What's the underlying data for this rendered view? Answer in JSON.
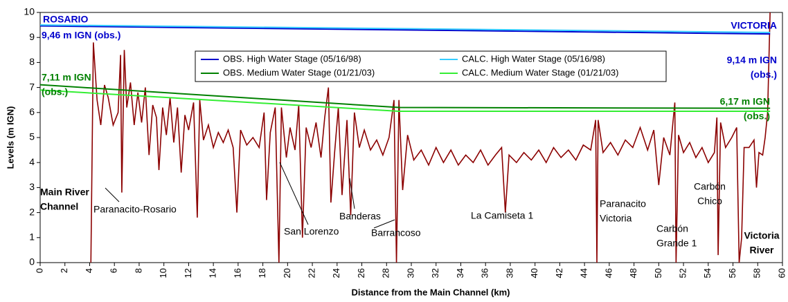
{
  "chart_data": {
    "type": "line",
    "xlabel": "Distance from the Main Channel (km)",
    "ylabel": "Levels (m IGN)",
    "xlim": [
      0,
      60
    ],
    "ylim": [
      0,
      10
    ],
    "xticks": [
      0,
      2,
      4,
      6,
      8,
      10,
      12,
      14,
      16,
      18,
      20,
      22,
      24,
      26,
      28,
      30,
      32,
      34,
      36,
      38,
      40,
      42,
      44,
      46,
      48,
      50,
      52,
      54,
      56,
      58,
      60
    ],
    "yticks": [
      0,
      1,
      2,
      3,
      4,
      5,
      6,
      7,
      8,
      9,
      10
    ],
    "legend": "top-center",
    "series": [
      {
        "name": "OBS. High Water Stage (05/16/98)",
        "color": "#0000cc",
        "x": [
          0,
          59
        ],
        "values": [
          9.46,
          9.14
        ]
      },
      {
        "name": "CALC. High Water Stage (05/16/98)",
        "color": "#33ccff",
        "x": [
          0,
          59
        ],
        "values": [
          9.5,
          9.2
        ]
      },
      {
        "name": "OBS. Medium Water Stage (01/21/03)",
        "color": "#008000",
        "x": [
          0,
          29,
          59
        ],
        "values": [
          7.11,
          6.2,
          6.17
        ]
      },
      {
        "name": "CALC. Medium Water Stage (01/21/03)",
        "color": "#33ee33",
        "x": [
          0,
          29,
          59
        ],
        "values": [
          6.9,
          6.05,
          6.05
        ]
      },
      {
        "color": "#8b0000",
        "x": [
          4.1,
          4.3,
          4.6,
          4.9,
          5.2,
          5.5,
          5.9,
          6.3,
          6.5,
          6.6,
          6.8,
          7.0,
          7.3,
          7.6,
          7.9,
          8.2,
          8.5,
          8.8,
          9.1,
          9.4,
          9.6,
          9.9,
          10.2,
          10.5,
          10.8,
          11.1,
          11.4,
          11.7,
          12.0,
          12.4,
          12.7,
          12.9,
          13.2,
          13.6,
          14.0,
          14.4,
          14.8,
          15.2,
          15.6,
          15.9,
          16.2,
          16.7,
          17.2,
          17.7,
          18.1,
          18.3,
          18.6,
          19.0,
          19.3,
          19.5,
          19.9,
          20.2,
          20.6,
          20.9,
          21.2,
          21.5,
          21.9,
          22.3,
          22.7,
          23.0,
          23.3,
          23.5,
          23.8,
          24.1,
          24.4,
          24.8,
          25.1,
          25.4,
          25.8,
          26.2,
          26.7,
          27.2,
          27.7,
          28.2,
          28.6,
          28.8,
          29.0,
          29.3,
          29.7,
          30.2,
          30.8,
          31.4,
          32.0,
          32.6,
          33.2,
          33.8,
          34.4,
          35.0,
          35.6,
          36.2,
          36.8,
          37.3,
          37.6,
          37.9,
          38.5,
          39.1,
          39.7,
          40.3,
          40.9,
          41.5,
          42.1,
          42.7,
          43.3,
          43.9,
          44.5,
          44.9,
          45.0,
          45.1,
          45.5,
          46.1,
          46.7,
          47.3,
          47.9,
          48.5,
          49.1,
          49.6,
          50.0,
          50.4,
          50.9,
          51.3,
          51.4,
          51.6,
          52.0,
          52.5,
          53.0,
          53.5,
          54.0,
          54.5,
          54.7,
          54.8,
          55.0,
          55.4,
          55.9,
          56.3,
          56.5,
          56.7,
          56.9,
          57.3,
          57.7,
          57.9,
          58.1,
          58.4,
          58.6,
          58.8,
          59.0
        ],
        "values": [
          0,
          8.8,
          6.5,
          5.5,
          7.1,
          6.6,
          5.5,
          6.0,
          8.3,
          2.8,
          8.5,
          6.2,
          7.2,
          5.5,
          6.8,
          5.6,
          7.0,
          4.3,
          6.3,
          5.8,
          3.7,
          6.2,
          5.1,
          6.6,
          4.8,
          6.2,
          3.6,
          5.9,
          5.3,
          6.4,
          1.8,
          6.5,
          4.9,
          5.5,
          4.6,
          5.2,
          4.8,
          5.3,
          4.6,
          2.0,
          5.3,
          4.7,
          5.0,
          4.6,
          6.0,
          2.5,
          5.2,
          6.2,
          0,
          6.2,
          4.2,
          5.4,
          4.5,
          6.3,
          1.0,
          5.4,
          4.6,
          5.6,
          4.2,
          5.8,
          7.0,
          2.4,
          4.4,
          6.2,
          2.7,
          5.7,
          1.9,
          6.0,
          4.6,
          5.3,
          4.5,
          4.9,
          4.3,
          5.0,
          6.5,
          0,
          6.5,
          2.9,
          5.1,
          4.1,
          4.5,
          3.9,
          4.6,
          4.0,
          4.5,
          3.9,
          4.3,
          4.0,
          4.5,
          3.9,
          4.3,
          4.6,
          2.0,
          4.3,
          4.0,
          4.4,
          4.1,
          4.5,
          4.0,
          4.6,
          4.2,
          4.5,
          4.1,
          4.7,
          4.5,
          5.7,
          0,
          5.7,
          4.4,
          4.8,
          4.3,
          4.9,
          4.6,
          5.4,
          4.5,
          5.3,
          3.1,
          5.0,
          4.3,
          6.4,
          0,
          5.1,
          4.4,
          4.8,
          4.2,
          4.6,
          4.0,
          4.4,
          5.8,
          0.3,
          5.6,
          4.6,
          5.0,
          5.4,
          0,
          1.0,
          4.6,
          4.6,
          4.9,
          3.0,
          4.4,
          4.3,
          5.0,
          6.0,
          10
        ]
      }
    ],
    "annotations": [
      {
        "lines": [
          "ROSARIO"
        ]
      },
      {
        "lines": [
          "9,46 m IGN (obs.)"
        ]
      },
      {
        "lines": [
          "VICTORIA"
        ]
      },
      {
        "lines": [
          "9,14 m IGN",
          "(obs.)"
        ]
      },
      {
        "lines": [
          "7,11 m IGN",
          "(obs.)"
        ]
      },
      {
        "lines": [
          "6,17 m IGN",
          "(obs.)"
        ]
      },
      {
        "lines": [
          "Main River",
          "Channel"
        ]
      },
      {
        "lines": [
          "Paranacito-Rosario"
        ]
      },
      {
        "lines": [
          "San Lorenzo"
        ]
      },
      {
        "lines": [
          "Banderas"
        ]
      },
      {
        "lines": [
          "Barrancoso"
        ]
      },
      {
        "lines": [
          "La Camiseta 1"
        ]
      },
      {
        "lines": [
          "Paranacito",
          "Victoria"
        ]
      },
      {
        "lines": [
          "Carbón",
          "Grande 1"
        ]
      },
      {
        "lines": [
          "Carbón",
          "Chico"
        ]
      },
      {
        "lines": [
          "Victoria",
          "River"
        ]
      }
    ]
  }
}
